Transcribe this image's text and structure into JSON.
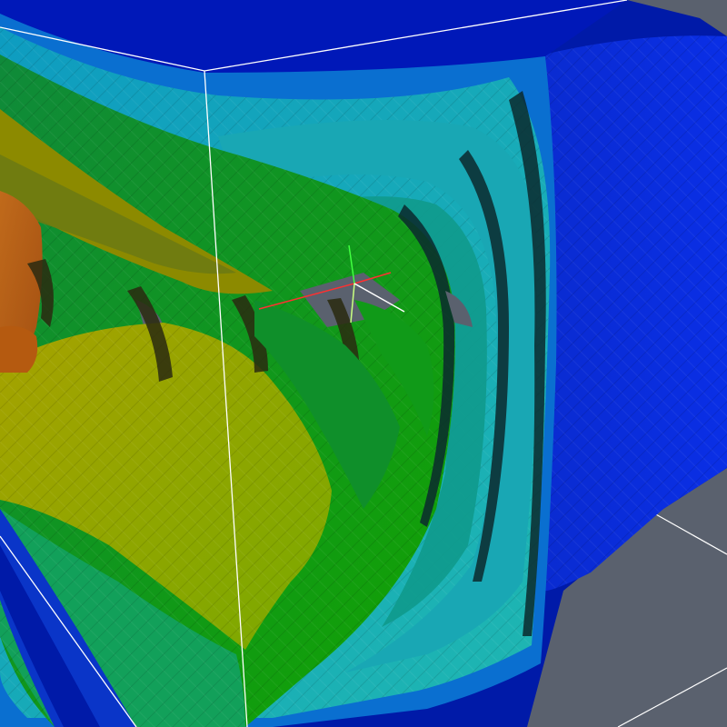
{
  "view": {
    "background": "#5a616e",
    "outline_color": "#ffffff",
    "colormap": [
      "#0018c8",
      "#0a3fe0",
      "#0b8fbf",
      "#18b7b0",
      "#10a84a",
      "#0bb000",
      "#6fb000",
      "#b5b300",
      "#c68a1a",
      "#b5531a"
    ]
  },
  "axes": {
    "x_color": "#ff3030",
    "y_color": "#40ff40",
    "z_color": "#ffffff"
  }
}
